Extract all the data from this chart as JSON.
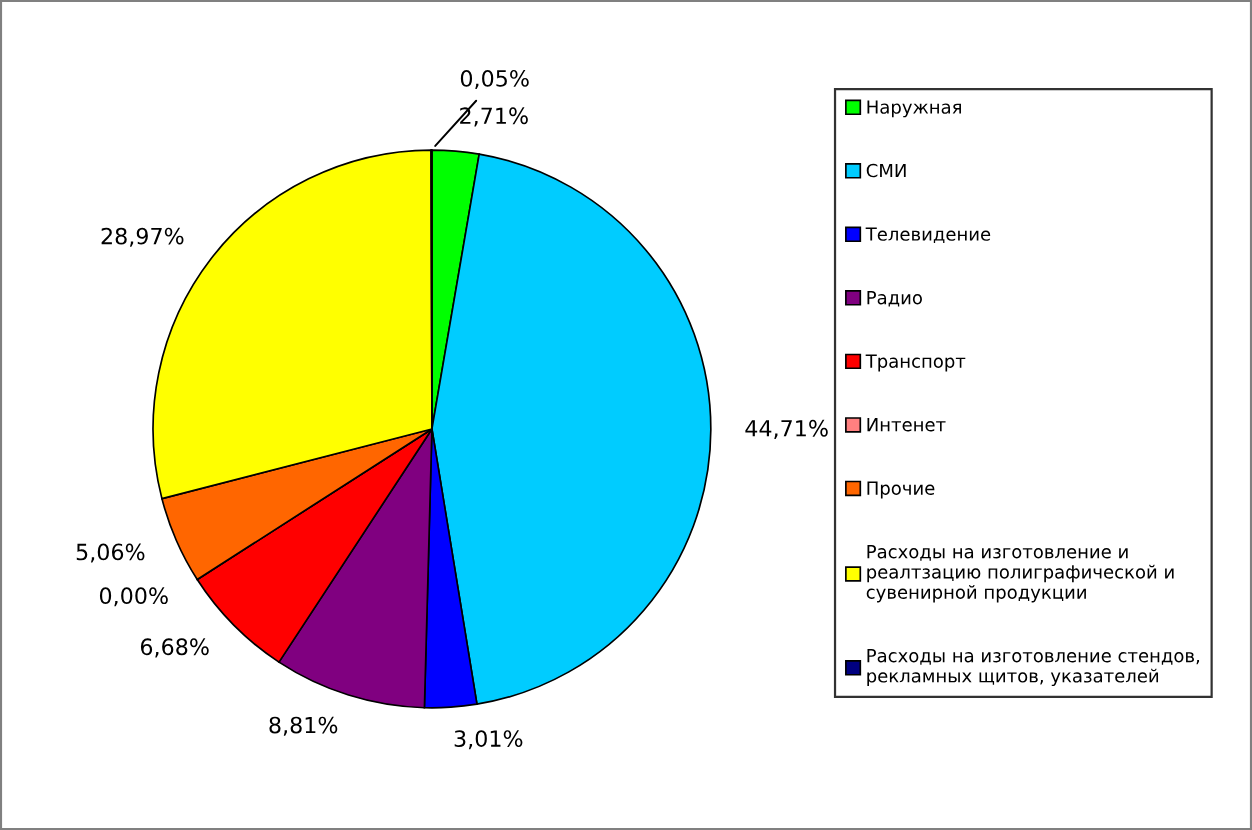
{
  "chart_data": {
    "type": "pie",
    "categories": [
      "Наружная",
      "СМИ",
      "Телевидение",
      "Радио",
      "Транспорт",
      "Интенет",
      "Прочие",
      "Расходы на изготовление и\nреалтзацию полиграфической и\nсувенирной продукции",
      "Расходы на изготовление стендов,\nрекламных щитов, указателей"
    ],
    "values": [
      2.71,
      44.71,
      3.01,
      8.81,
      6.68,
      0.0,
      5.06,
      28.97,
      0.05
    ],
    "colors": [
      "#00ff00",
      "#00ccff",
      "#0000ff",
      "#800080",
      "#ff0000",
      "#ff8080",
      "#ff6600",
      "#ffff00",
      "#000080"
    ],
    "value_labels": [
      "2,71%",
      "44,71%",
      "3,01%",
      "8,81%",
      "6,68%",
      "0,00%",
      "5,06%",
      "28,97%",
      "0,05%"
    ],
    "legend": "right"
  }
}
